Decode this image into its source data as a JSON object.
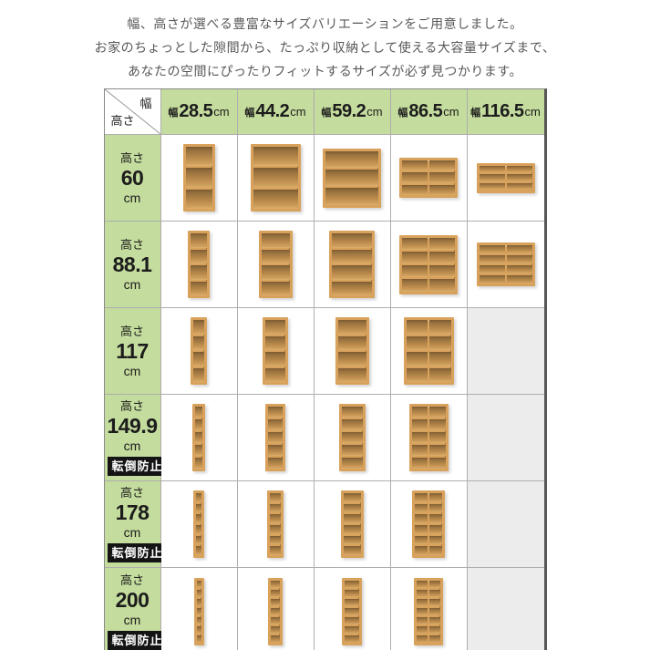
{
  "intro": {
    "lines": [
      "幅、高さが選べる豊富なサイズバリエーションをご用意しました。",
      "お家のちょっとした隙間から、たっぷり収納として使える大容量サイズまで、",
      "あなたの空間にぴったりフィットするサイズが必ず見つかります。"
    ]
  },
  "table": {
    "corner": {
      "width_label": "幅",
      "height_label": "高さ"
    },
    "width_prefix": "幅",
    "height_prefix": "高さ",
    "unit": "cm",
    "anti_tip_label": "転倒防止",
    "columns": [
      {
        "value": "28.5",
        "width_cm": 28.5
      },
      {
        "value": "44.2",
        "width_cm": 44.2
      },
      {
        "value": "59.2",
        "width_cm": 59.2
      },
      {
        "value": "86.5",
        "width_cm": 86.5
      },
      {
        "value": "116.5",
        "width_cm": 116.5
      }
    ],
    "rows": [
      {
        "value": "60",
        "height_cm": 60,
        "anti_tip": false,
        "shelves": [
          {
            "cols": 1,
            "rows": 3
          },
          {
            "cols": 1,
            "rows": 3
          },
          {
            "cols": 1,
            "rows": 3
          },
          {
            "cols": 2,
            "rows": 3
          },
          {
            "cols": 2,
            "rows": 3
          }
        ]
      },
      {
        "value": "88.1",
        "height_cm": 88.1,
        "anti_tip": false,
        "shelves": [
          {
            "cols": 1,
            "rows": 4
          },
          {
            "cols": 1,
            "rows": 4
          },
          {
            "cols": 1,
            "rows": 4
          },
          {
            "cols": 2,
            "rows": 4
          },
          {
            "cols": 2,
            "rows": 4
          }
        ]
      },
      {
        "value": "117",
        "height_cm": 117,
        "anti_tip": false,
        "shelves": [
          {
            "cols": 1,
            "rows": 4
          },
          {
            "cols": 1,
            "rows": 4
          },
          {
            "cols": 1,
            "rows": 4
          },
          {
            "cols": 2,
            "rows": 4
          },
          null
        ]
      },
      {
        "value": "149.9",
        "height_cm": 149.9,
        "anti_tip": true,
        "shelves": [
          {
            "cols": 1,
            "rows": 5
          },
          {
            "cols": 1,
            "rows": 5
          },
          {
            "cols": 1,
            "rows": 5
          },
          {
            "cols": 2,
            "rows": 5
          },
          null
        ]
      },
      {
        "value": "178",
        "height_cm": 178,
        "anti_tip": true,
        "shelves": [
          {
            "cols": 1,
            "rows": 6
          },
          {
            "cols": 1,
            "rows": 6
          },
          {
            "cols": 1,
            "rows": 6
          },
          {
            "cols": 2,
            "rows": 6
          },
          null
        ]
      },
      {
        "value": "200",
        "height_cm": 200,
        "anti_tip": true,
        "shelves": [
          {
            "cols": 1,
            "rows": 7
          },
          {
            "cols": 1,
            "rows": 7
          },
          {
            "cols": 1,
            "rows": 7
          },
          {
            "cols": 2,
            "rows": 7
          },
          null
        ]
      }
    ]
  },
  "colors": {
    "header_green": "#c4dc9d",
    "empty_cell": "#ececec",
    "wood_frame": "#d9a25c",
    "wood_interior_dark": "#7c5a30",
    "badge_bg": "#141414",
    "badge_text": "#ffffff",
    "outer_border_dark": "#575757",
    "grid_line": "#aeaeae",
    "intro_text": "#585858"
  }
}
